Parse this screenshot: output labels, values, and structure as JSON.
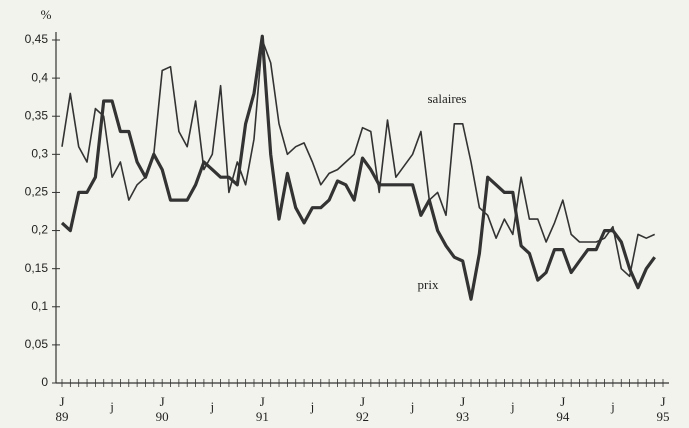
{
  "chart_data": {
    "type": "line",
    "y_unit_label": "%",
    "annotations": [
      "salaires",
      "prix"
    ],
    "categories": [
      "J 89",
      null,
      null,
      null,
      null,
      null,
      "j",
      null,
      null,
      null,
      null,
      null,
      "J 90",
      null,
      null,
      null,
      null,
      null,
      "j",
      null,
      null,
      null,
      null,
      null,
      "J 91",
      null,
      null,
      null,
      null,
      null,
      "j",
      null,
      null,
      null,
      null,
      null,
      "J 92",
      null,
      null,
      null,
      null,
      null,
      "j",
      null,
      null,
      null,
      null,
      null,
      "J 93",
      null,
      null,
      null,
      null,
      null,
      "j",
      null,
      null,
      null,
      null,
      null,
      "J 94",
      null,
      null,
      null,
      null,
      null,
      "j",
      null,
      null,
      null,
      null,
      null,
      "J 95"
    ],
    "series": [
      {
        "name": "salaires",
        "color": "#333333",
        "width": 1.6,
        "values": [
          0.31,
          0.38,
          0.31,
          0.29,
          0.36,
          0.35,
          0.27,
          0.29,
          0.24,
          0.26,
          0.27,
          0.3,
          0.41,
          0.415,
          0.33,
          0.31,
          0.37,
          0.28,
          0.3,
          0.39,
          0.25,
          0.29,
          0.26,
          0.32,
          0.45,
          0.42,
          0.34,
          0.3,
          0.31,
          0.315,
          0.29,
          0.26,
          0.275,
          0.28,
          0.29,
          0.3,
          0.335,
          0.33,
          0.25,
          0.345,
          0.27,
          0.285,
          0.3,
          0.33,
          0.24,
          0.25,
          0.22,
          0.34,
          0.34,
          0.29,
          0.23,
          0.22,
          0.19,
          0.215,
          0.195,
          0.27,
          0.215,
          0.215,
          0.185,
          0.21,
          0.24,
          0.195,
          0.185,
          0.185,
          0.185,
          0.19,
          0.205,
          0.15,
          0.14,
          0.195,
          0.19,
          0.195,
          null
        ]
      },
      {
        "name": "prix",
        "color": "#333333",
        "width": 3.2,
        "values": [
          0.21,
          0.2,
          0.25,
          0.25,
          0.27,
          0.37,
          0.37,
          0.33,
          0.33,
          0.29,
          0.27,
          0.3,
          0.28,
          0.24,
          0.24,
          0.24,
          0.26,
          0.29,
          0.28,
          0.27,
          0.27,
          0.26,
          0.34,
          0.38,
          0.455,
          0.3,
          0.215,
          0.275,
          0.23,
          0.21,
          0.23,
          0.23,
          0.24,
          0.265,
          0.26,
          0.24,
          0.295,
          0.28,
          0.26,
          0.26,
          0.26,
          0.26,
          0.26,
          0.22,
          0.24,
          0.2,
          0.18,
          0.165,
          0.16,
          0.11,
          0.17,
          0.27,
          0.26,
          0.25,
          0.25,
          0.18,
          0.17,
          0.135,
          0.145,
          0.175,
          0.175,
          0.145,
          0.16,
          0.175,
          0.175,
          0.2,
          0.2,
          0.185,
          0.15,
          0.125,
          0.15,
          0.165,
          null
        ]
      }
    ],
    "ylim": [
      0,
      0.45
    ],
    "yticks": [
      0,
      {
        "value": 0.05,
        "label": "0,05"
      },
      {
        "value": 0.1,
        "label": "0,1"
      },
      {
        "value": 0.15,
        "label": "0,15"
      },
      {
        "value": 0.2,
        "label": "0,2"
      },
      {
        "value": 0.25,
        "label": "0,25"
      },
      {
        "value": 0.3,
        "label": "0,3"
      },
      {
        "value": 0.35,
        "label": "0,35"
      },
      {
        "value": 0.4,
        "label": "0,4"
      },
      {
        "value": 0.45,
        "label": "0,45"
      }
    ],
    "grid": false
  }
}
